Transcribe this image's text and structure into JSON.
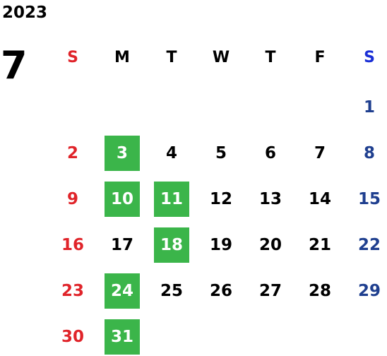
{
  "calendar": {
    "year": "2023",
    "month": "7",
    "colors": {
      "sunday": "#e0242a",
      "saturday": "#1f3f8f",
      "saturday_header": "#1a2fd6",
      "weekday": "#000000",
      "highlight_bg": "#3bb54a",
      "highlight_text": "#ffffff"
    },
    "weekdays": [
      "S",
      "M",
      "T",
      "W",
      "T",
      "F",
      "S"
    ],
    "weeks": [
      [
        null,
        null,
        null,
        null,
        null,
        null,
        1
      ],
      [
        2,
        3,
        4,
        5,
        6,
        7,
        8
      ],
      [
        9,
        10,
        11,
        12,
        13,
        14,
        15
      ],
      [
        16,
        17,
        18,
        19,
        20,
        21,
        22
      ],
      [
        23,
        24,
        25,
        26,
        27,
        28,
        29
      ],
      [
        30,
        31,
        null,
        null,
        null,
        null,
        null
      ]
    ],
    "highlighted_days": [
      3,
      10,
      11,
      18,
      24,
      31
    ]
  }
}
